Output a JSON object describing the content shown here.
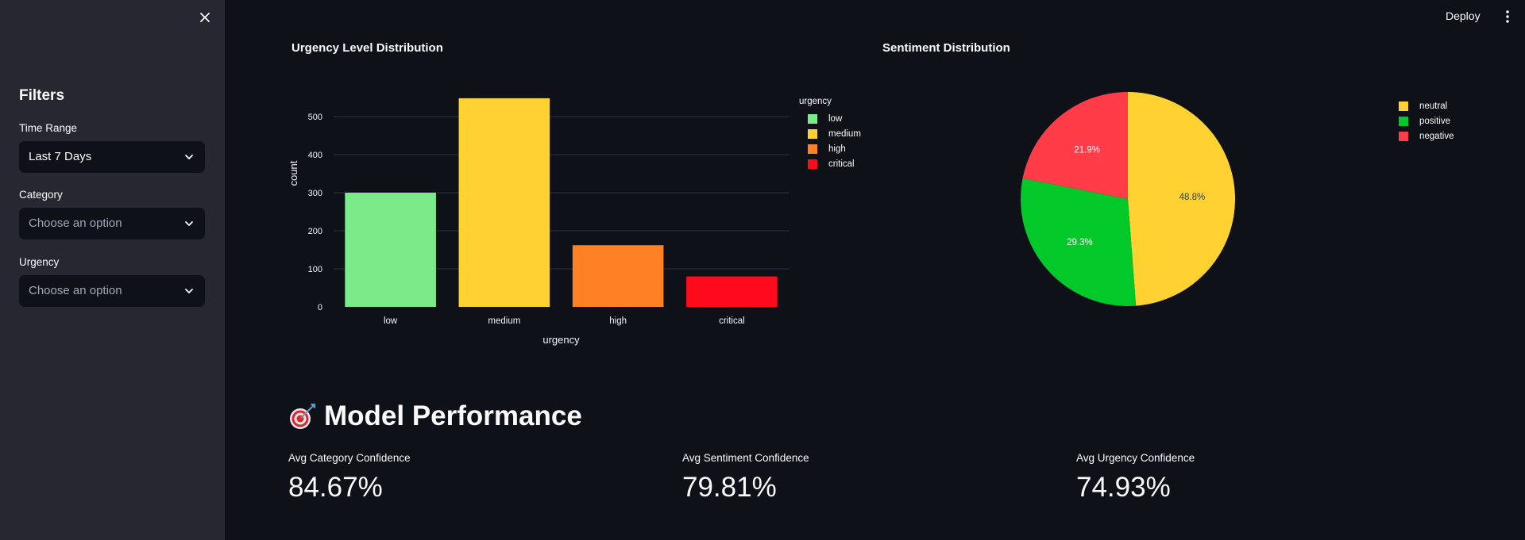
{
  "header": {
    "deploy_label": "Deploy"
  },
  "sidebar": {
    "title": "Filters",
    "filters": [
      {
        "label": "Time Range",
        "value": "Last 7 Days",
        "placeholder": false
      },
      {
        "label": "Category",
        "value": "Choose an option",
        "placeholder": true
      },
      {
        "label": "Urgency",
        "value": "Choose an option",
        "placeholder": true
      }
    ]
  },
  "urgency_chart": {
    "title": "Urgency Level Distribution",
    "legend_title": "urgency",
    "legend": [
      "low",
      "medium",
      "high",
      "critical"
    ]
  },
  "sentiment_chart": {
    "title": "Sentiment Distribution",
    "legend": [
      "neutral",
      "positive",
      "negative"
    ]
  },
  "chart_data": [
    {
      "type": "bar",
      "title": "Urgency Level Distribution",
      "categories": [
        "low",
        "medium",
        "high",
        "critical"
      ],
      "values": [
        300,
        548,
        162,
        80
      ],
      "colors": [
        "#7bea89",
        "#ffd232",
        "#ff8124",
        "#ff0a1b"
      ],
      "xlabel": "urgency",
      "ylabel": "count",
      "yticks": [
        0,
        100,
        200,
        300,
        400,
        500
      ],
      "ylim": [
        0,
        577
      ],
      "grid": true,
      "legend_title": "urgency",
      "legend_position": "right"
    },
    {
      "type": "pie",
      "title": "Sentiment Distribution",
      "labels": [
        "neutral",
        "positive",
        "negative"
      ],
      "values": [
        48.8,
        29.3,
        21.9
      ],
      "value_labels": [
        "48.8%",
        "29.3%",
        "21.9%"
      ],
      "colors": [
        "#ffd232",
        "#03c82a",
        "#ff3c48"
      ],
      "legend_position": "right"
    }
  ],
  "model_performance": {
    "title": "Model Performance",
    "icon": "target-icon",
    "metrics": [
      {
        "label": "Avg Category Confidence",
        "value": "84.67%"
      },
      {
        "label": "Avg Sentiment Confidence",
        "value": "79.81%"
      },
      {
        "label": "Avg Urgency Confidence",
        "value": "74.93%"
      }
    ]
  }
}
